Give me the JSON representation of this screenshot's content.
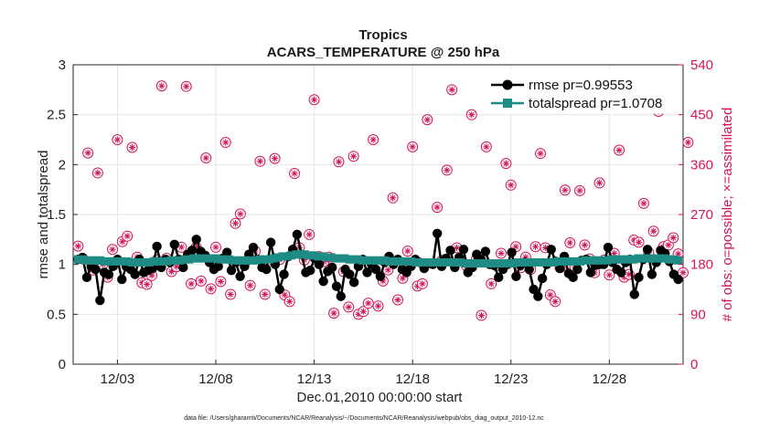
{
  "chart_data": {
    "type": "line",
    "title": "Tropics",
    "subtitle": "ACARS_TEMPERATURE @ 250 hPa",
    "xlabel": "Dec.01,2010 00:00:00 start",
    "ylabel_left": "rmse and totalspread",
    "ylabel_right": "# of obs: o=possible; ×=assimilated",
    "ylim_left": [
      0,
      3
    ],
    "ylim_right": [
      0,
      540
    ],
    "xlim_days": [
      0.25,
      31.25
    ],
    "x_ticks": [
      {
        "day": 2.5,
        "label": "12/03"
      },
      {
        "day": 7.5,
        "label": "12/08"
      },
      {
        "day": 12.5,
        "label": "12/13"
      },
      {
        "day": 17.5,
        "label": "12/18"
      },
      {
        "day": 22.5,
        "label": "12/23"
      },
      {
        "day": 27.5,
        "label": "12/28"
      }
    ],
    "y_ticks_left": [
      "0",
      "0.5",
      "1",
      "1.5",
      "2",
      "2.5",
      "3"
    ],
    "y_ticks_right": [
      "0",
      "90",
      "180",
      "270",
      "360",
      "450",
      "540"
    ],
    "grid": true,
    "legend_position": "top-right",
    "colors": {
      "rmse": "#000000",
      "totalspread": "#1e8b84",
      "obs": "#d4145a"
    },
    "series": [
      {
        "name": "rmse pr=0.99553",
        "marker": "circle",
        "values": [
          1.05,
          1.07,
          0.87,
          0.98,
          0.95,
          0.64,
          0.92,
          0.9,
          0.98,
          1.05,
          0.85,
          0.98,
          0.95,
          0.9,
          1.05,
          0.92,
          0.94,
          0.96,
          1.18,
          0.97,
          1.05,
          1.02,
          1.2,
          1.05,
          0.97,
          1.1,
          1.14,
          1.25,
          1.13,
          1.09,
          1.02,
          0.95,
          0.98,
          1.06,
          1.12,
          0.94,
          1.02,
          0.88,
          0.98,
          1.1,
          1.17,
          1.05,
          0.97,
          0.95,
          1.22,
          1.0,
          0.75,
          0.9,
          1.08,
          1.15,
          1.3,
          1.1,
          0.92,
          0.94,
          1.06,
          1.0,
          0.83,
          0.93,
          0.97,
          0.78,
          0.68,
          0.95,
          0.9,
          0.82,
          0.98,
          1.05,
          0.92,
          1.0,
          0.95,
          0.88,
          1.02,
          1.08,
          1.0,
          1.05,
          0.95,
          0.92,
          0.98,
          1.05,
          1.02,
          0.96,
          1.01,
          1.0,
          1.31,
          0.98,
          1.06,
          1.14,
          0.97,
          1.07,
          1.15,
          0.92,
          0.97,
          1.1,
          1.05,
          1.13,
          1.0,
          0.99,
          0.87,
          0.95,
          1.0,
          1.12,
          0.88,
          0.99,
          1.02,
          0.95,
          0.75,
          0.68,
          0.86,
          1.0,
          1.15,
          1.03,
          0.96,
          1.08,
          0.91,
          0.87,
          0.95,
          1.04,
          1.05,
          0.92,
          0.99,
          1.0,
          1.0,
          1.17,
          1.02,
          0.95,
          0.92,
          1.02,
          1.05,
          0.7,
          0.87,
          1.05,
          1.15,
          0.9,
          1.02,
          1.14,
          1.11,
          1.03,
          0.9,
          0.85
        ]
      },
      {
        "name": "totalspread pr=1.0708",
        "marker": "square",
        "values": [
          1.05,
          1.05,
          1.04,
          1.04,
          1.04,
          1.04,
          1.03,
          1.03,
          1.03,
          1.03,
          1.03,
          1.03,
          1.02,
          1.02,
          1.02,
          1.02,
          1.02,
          1.03,
          1.03,
          1.03,
          1.03,
          1.04,
          1.04,
          1.04,
          1.05,
          1.05,
          1.06,
          1.06,
          1.06,
          1.06,
          1.06,
          1.06,
          1.05,
          1.05,
          1.05,
          1.04,
          1.04,
          1.04,
          1.04,
          1.04,
          1.04,
          1.05,
          1.05,
          1.05,
          1.06,
          1.07,
          1.08,
          1.08,
          1.09,
          1.1,
          1.1,
          1.1,
          1.09,
          1.09,
          1.08,
          1.08,
          1.07,
          1.07,
          1.06,
          1.06,
          1.06,
          1.05,
          1.05,
          1.05,
          1.04,
          1.04,
          1.04,
          1.04,
          1.04,
          1.04,
          1.03,
          1.03,
          1.03,
          1.03,
          1.03,
          1.03,
          1.02,
          1.02,
          1.02,
          1.02,
          1.02,
          1.02,
          1.02,
          1.02,
          1.02,
          1.02,
          1.02,
          1.01,
          1.01,
          1.01,
          1.01,
          1.01,
          1.01,
          1.01,
          1.01,
          1.01,
          1.01,
          1.01,
          1.01,
          1.02,
          1.02,
          1.02,
          1.02,
          1.02,
          1.02,
          1.02,
          1.02,
          1.02,
          1.03,
          1.03,
          1.03,
          1.03,
          1.03,
          1.03,
          1.04,
          1.04,
          1.04,
          1.04,
          1.04,
          1.04,
          1.05,
          1.05,
          1.05,
          1.05,
          1.05,
          1.05,
          1.06,
          1.06,
          1.06,
          1.06,
          1.06,
          1.06,
          1.06,
          1.05,
          1.05,
          1.04
        ]
      },
      {
        "name": "# of obs possible / assimilated",
        "marker": "circle-star",
        "points": [
          [
            0.5,
            213
          ],
          [
            0.75,
            190
          ],
          [
            1.0,
            381
          ],
          [
            1.25,
            170
          ],
          [
            1.5,
            345
          ],
          [
            1.75,
            180
          ],
          [
            2.0,
            157
          ],
          [
            2.25,
            207
          ],
          [
            2.5,
            405
          ],
          [
            2.75,
            221
          ],
          [
            3.0,
            231
          ],
          [
            3.25,
            391
          ],
          [
            3.5,
            193
          ],
          [
            3.75,
            147
          ],
          [
            4.0,
            144
          ],
          [
            4.25,
            160
          ],
          [
            4.5,
            188
          ],
          [
            4.75,
            502
          ],
          [
            5.0,
            191
          ],
          [
            5.25,
            167
          ],
          [
            5.5,
            176
          ],
          [
            5.75,
            211
          ],
          [
            6.0,
            501
          ],
          [
            6.25,
            145
          ],
          [
            6.5,
            211
          ],
          [
            6.75,
            150
          ],
          [
            7.0,
            372
          ],
          [
            7.25,
            136
          ],
          [
            7.5,
            211
          ],
          [
            7.75,
            149
          ],
          [
            8.0,
            400
          ],
          [
            8.25,
            126
          ],
          [
            8.5,
            254
          ],
          [
            8.75,
            271
          ],
          [
            9.0,
            185
          ],
          [
            9.25,
            142
          ],
          [
            9.5,
            204
          ],
          [
            9.75,
            366
          ],
          [
            10.0,
            126
          ],
          [
            10.25,
            188
          ],
          [
            10.5,
            371
          ],
          [
            10.75,
            189
          ],
          [
            11.0,
            125
          ],
          [
            11.25,
            113
          ],
          [
            11.5,
            344
          ],
          [
            11.75,
            210
          ],
          [
            12.0,
            188
          ],
          [
            12.25,
            234
          ],
          [
            12.5,
            477
          ],
          [
            12.75,
            194
          ],
          [
            13.0,
            185
          ],
          [
            13.25,
            193
          ],
          [
            13.5,
            92
          ],
          [
            13.75,
            365
          ],
          [
            14.0,
            167
          ],
          [
            14.25,
            103
          ],
          [
            14.5,
            375
          ],
          [
            14.75,
            90
          ],
          [
            15.0,
            95
          ],
          [
            15.25,
            110
          ],
          [
            15.5,
            405
          ],
          [
            15.75,
            105
          ],
          [
            16.0,
            150
          ],
          [
            16.25,
            170
          ],
          [
            16.5,
            300
          ],
          [
            16.75,
            116
          ],
          [
            17.0,
            155
          ],
          [
            17.25,
            204
          ],
          [
            17.5,
            392
          ],
          [
            17.75,
            141
          ],
          [
            18.0,
            145
          ],
          [
            18.25,
            441
          ],
          [
            18.75,
            283
          ],
          [
            19.0,
            187
          ],
          [
            19.25,
            350
          ],
          [
            19.5,
            495
          ],
          [
            19.75,
            210
          ],
          [
            20.0,
            186
          ],
          [
            20.25,
            177
          ],
          [
            20.5,
            450
          ],
          [
            20.75,
            190
          ],
          [
            21.0,
            88
          ],
          [
            21.25,
            392
          ],
          [
            21.5,
            145
          ],
          [
            21.75,
            178
          ],
          [
            22.0,
            200
          ],
          [
            22.25,
            362
          ],
          [
            22.5,
            323
          ],
          [
            22.75,
            212
          ],
          [
            23.0,
            174
          ],
          [
            23.25,
            193
          ],
          [
            23.5,
            171
          ],
          [
            23.75,
            212
          ],
          [
            24.0,
            380
          ],
          [
            24.25,
            210
          ],
          [
            24.5,
            125
          ],
          [
            24.75,
            113
          ],
          [
            25.0,
            174
          ],
          [
            25.25,
            314
          ],
          [
            25.5,
            219
          ],
          [
            25.75,
            175
          ],
          [
            26.0,
            313
          ],
          [
            26.25,
            215
          ],
          [
            26.5,
            190
          ],
          [
            26.75,
            165
          ],
          [
            27.0,
            327
          ],
          [
            27.25,
            188
          ],
          [
            27.5,
            161
          ],
          [
            27.75,
            200
          ],
          [
            28.0,
            386
          ],
          [
            28.25,
            157
          ],
          [
            28.5,
            162
          ],
          [
            28.75,
            224
          ],
          [
            29.0,
            220
          ],
          [
            29.25,
            290
          ],
          [
            29.5,
            201
          ],
          [
            29.75,
            240
          ],
          [
            30.0,
            456
          ],
          [
            30.25,
            212
          ],
          [
            30.5,
            215
          ],
          [
            30.75,
            228
          ],
          [
            31.0,
            199
          ],
          [
            31.25,
            165
          ],
          [
            31.5,
            400
          ],
          [
            31.75,
            189
          ],
          [
            32.0,
            112
          ],
          [
            32.25,
            0
          ]
        ]
      }
    ],
    "footnote": "data file: /Users/gharamti/Documents/NCAR/Reanalysis/~/Documents/NCAR/Reanalysis/webpub/obs_diag_output_2010-12.nc"
  }
}
